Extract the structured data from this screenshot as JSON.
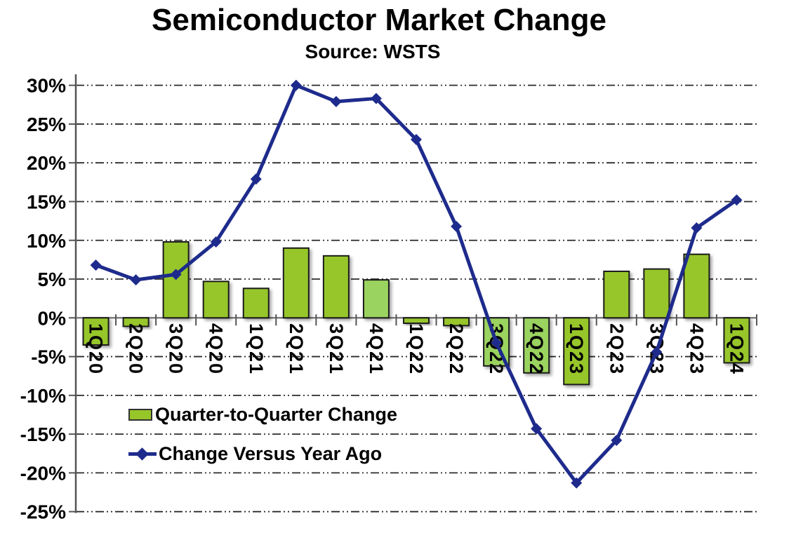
{
  "title": "Semiconductor Market Change",
  "subtitle": "Source: WSTS",
  "legend": {
    "bar_label": "Quarter-to-Quarter Change",
    "line_label": "Change Versus Year Ago"
  },
  "colors": {
    "background": "#FFFFFF",
    "text": "#000000",
    "bar_fill": "#97C629",
    "bar_fill_light": "#9AD35F",
    "bar_border": "#1A1A1A",
    "line": "#1E2B8C",
    "grid": "#2B2B2B",
    "zero_axis": "#808080",
    "axis": "#555555"
  },
  "chart_data": {
    "type": "combo-bar-line",
    "title": "Semiconductor Market Change",
    "subtitle": "Source: WSTS",
    "unit": "percent",
    "categories": [
      "1Q20",
      "2Q20",
      "3Q20",
      "4Q20",
      "1Q21",
      "2Q21",
      "3Q21",
      "4Q21",
      "1Q22",
      "2Q22",
      "3Q22",
      "4Q22",
      "1Q23",
      "2Q23",
      "3Q23",
      "4Q23",
      "1Q24"
    ],
    "series": [
      {
        "name": "Quarter-to-Quarter Change",
        "type": "bar",
        "values": [
          -3.5,
          -1.1,
          9.8,
          4.7,
          3.8,
          9.0,
          8.0,
          4.9,
          -0.7,
          -1.0,
          -6.2,
          -7.1,
          -8.6,
          6.0,
          6.3,
          8.2,
          -5.8
        ]
      },
      {
        "name": "Change Versus Year Ago",
        "type": "line",
        "values": [
          6.8,
          4.9,
          5.6,
          9.8,
          17.9,
          30.0,
          27.9,
          28.3,
          23.0,
          11.8,
          -3.2,
          -14.3,
          -21.3,
          -15.8,
          -4.4,
          11.6,
          15.2
        ]
      }
    ],
    "ylim": [
      -25,
      30
    ],
    "yticks": [
      30,
      25,
      20,
      15,
      10,
      5,
      0,
      -5,
      -10,
      -15,
      -20,
      -25
    ],
    "ytick_labels": [
      "30%",
      "25%",
      "20%",
      "15%",
      "10%",
      "5%",
      "0%",
      "-5%",
      "-10%",
      "-15%",
      "-20%",
      "-25%"
    ],
    "grid": "horizontal-dashed",
    "legend_position": "inside-lower-left",
    "style": {
      "light_bar_indices": [
        7,
        10,
        11
      ]
    }
  }
}
